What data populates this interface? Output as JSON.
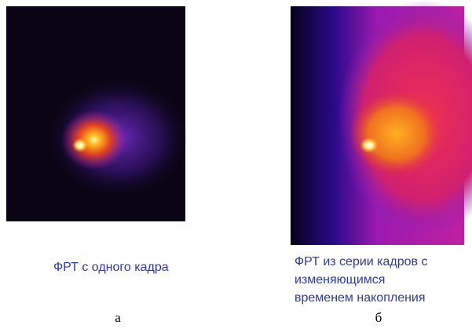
{
  "panels": [
    {
      "caption": [
        "ФРТ с одного кадра"
      ],
      "label": "а"
    },
    {
      "caption": [
        "ФРТ из серии кадров с",
        "изменяющимся",
        "временем накопления"
      ],
      "label": "б"
    }
  ]
}
